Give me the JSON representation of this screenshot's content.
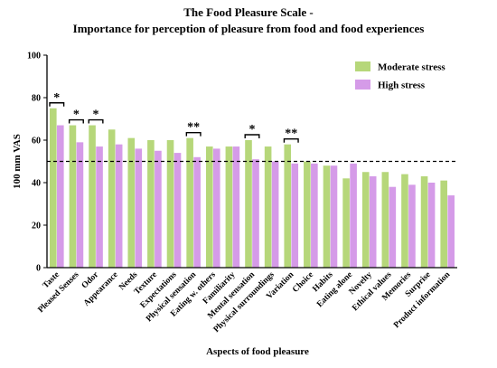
{
  "chart_data": {
    "type": "bar",
    "title_lines": [
      "The Food Pleasure Scale -",
      "Importance for perception of pleasure from food and food experiences"
    ],
    "xlabel": "Aspects of food pleasure",
    "ylabel": "100 mm VAS",
    "ylim": [
      0,
      100
    ],
    "yticks": [
      0,
      20,
      40,
      60,
      80,
      100
    ],
    "reference_line": 50,
    "legend_position": "top-right",
    "categories": [
      "Taste",
      "Pleased Senses",
      "Odor",
      "Appearance",
      "Needs",
      "Texture",
      "Expectations",
      "Physical sensation",
      "Eating w. others",
      "Familiarity",
      "Mental sensation",
      "Physical surroundings",
      "Variation",
      "Choice",
      "Habits",
      "Eating alone",
      "Novelty",
      "Ethical values",
      "Memories",
      "Surprise",
      "Product information"
    ],
    "series": [
      {
        "name": "Moderate stress",
        "color": "#b6d77a",
        "values": [
          75,
          67,
          67,
          65,
          61,
          60,
          60,
          61,
          57,
          57,
          60,
          57,
          58,
          50,
          48,
          42,
          45,
          45,
          44,
          43,
          41
        ]
      },
      {
        "name": "High stress",
        "color": "#d59be8",
        "values": [
          67,
          59,
          57,
          58,
          56,
          55,
          54,
          52,
          56,
          57,
          51,
          50,
          49,
          49,
          48,
          49,
          43,
          38,
          39,
          40,
          34
        ]
      }
    ],
    "significance": [
      {
        "category": "Taste",
        "label": "*"
      },
      {
        "category": "Pleased Senses",
        "label": "*"
      },
      {
        "category": "Odor",
        "label": "*"
      },
      {
        "category": "Physical sensation",
        "label": "**"
      },
      {
        "category": "Mental sensation",
        "label": "*"
      },
      {
        "category": "Variation",
        "label": "**"
      }
    ]
  }
}
